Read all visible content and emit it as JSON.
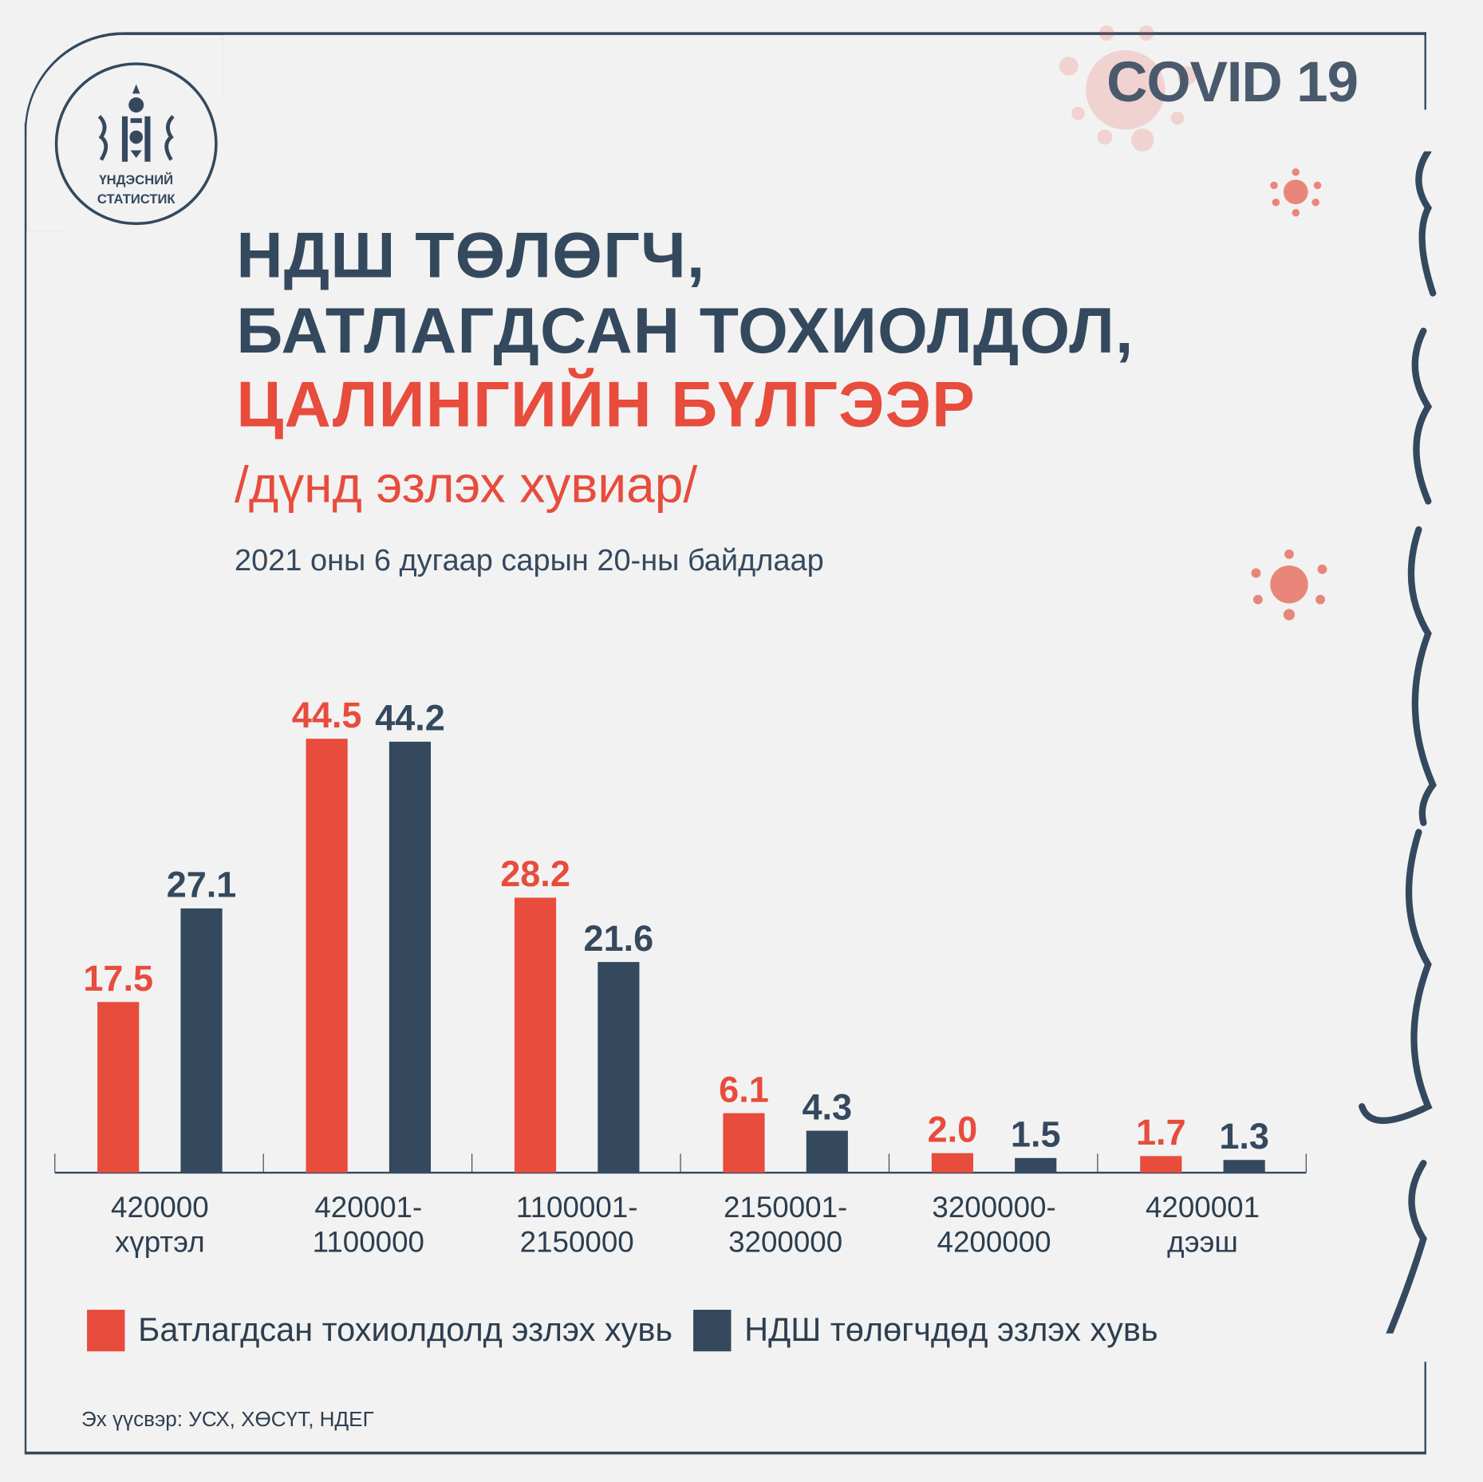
{
  "header": {
    "badge": "COVID 19",
    "logo_line1": "ҮНДЭСНИЙ",
    "logo_line2": "СТАТИСТИК"
  },
  "title": {
    "line1": "НДШ ТӨЛӨГЧ,",
    "line2": "БАТЛАГДСАН ТОХИОЛДОЛ,",
    "line3": "ЦАЛИНГИЙН БҮЛГЭЭР",
    "unit": "/дүнд эзлэх хувиар/",
    "date": "2021 оны 6 дугаар сарын 20-ны байдлаар"
  },
  "source": "Эх үүсвэр: УСХ, ХӨСҮТ, НДЕГ",
  "colors": {
    "red": "#e74c3c",
    "navy": "#34495e",
    "bg": "#f2f2f2"
  },
  "chart_data": {
    "type": "bar",
    "categories": [
      [
        "420000",
        "хүртэл"
      ],
      [
        "420001-",
        "1100000"
      ],
      [
        "1100001-",
        "2150000"
      ],
      [
        "2150001-",
        "3200000"
      ],
      [
        "3200000-",
        "4200000"
      ],
      [
        "4200001",
        "дээш"
      ]
    ],
    "series": [
      {
        "name": "Батлагдсан тохиолдолд эзлэх хувь",
        "color": "#e74c3c",
        "values": [
          17.5,
          44.5,
          28.2,
          6.1,
          2.0,
          1.7
        ],
        "labels": [
          "17.5",
          "44.5",
          "28.2",
          "6.1",
          "2.0",
          "1.7"
        ]
      },
      {
        "name": "НДШ төлөгчдөд эзлэх хувь",
        "color": "#34495e",
        "values": [
          27.1,
          44.2,
          21.6,
          4.3,
          1.5,
          1.3
        ],
        "labels": [
          "27.1",
          "44.2",
          "21.6",
          "4.3",
          "1.5",
          "1.3"
        ]
      }
    ],
    "ylim": [
      0,
      50
    ],
    "grid": false,
    "legend": "bottom"
  }
}
